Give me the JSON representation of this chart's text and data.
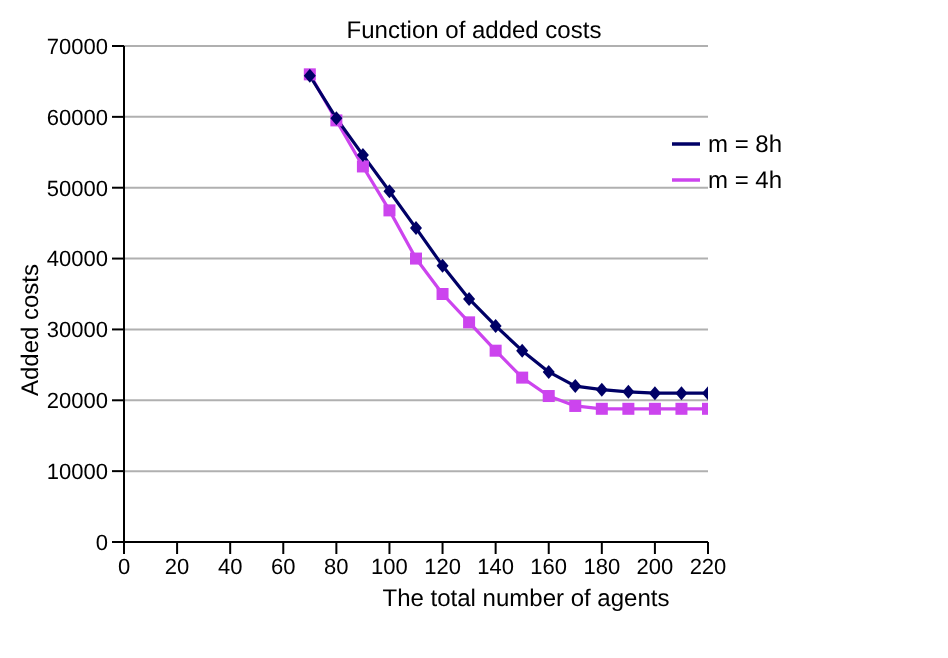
{
  "chart_data": {
    "type": "line",
    "title": "Function of added costs",
    "xlabel": "The total number of agents",
    "ylabel": "Added costs",
    "x": [
      70,
      80,
      90,
      100,
      110,
      120,
      130,
      140,
      150,
      160,
      170,
      180,
      190,
      200,
      210,
      220
    ],
    "series": [
      {
        "name": "m = 8h",
        "color": "#000066",
        "marker": "diamond",
        "values": [
          65800,
          59800,
          54600,
          49500,
          44300,
          39000,
          34300,
          30500,
          27000,
          24000,
          22000,
          21500,
          21200,
          21000,
          21000,
          21000
        ]
      },
      {
        "name": "m = 4h",
        "color": "#cc44ee",
        "marker": "square",
        "values": [
          66000,
          59500,
          53000,
          46800,
          40000,
          35000,
          31000,
          27000,
          23200,
          20600,
          19200,
          18800,
          18800,
          18800,
          18800,
          18800
        ]
      }
    ],
    "xlim": [
      0,
      220
    ],
    "xticks": [
      0,
      20,
      40,
      60,
      80,
      100,
      120,
      140,
      160,
      180,
      200,
      220
    ],
    "ylim": [
      0,
      70000
    ],
    "yticks": [
      0,
      10000,
      20000,
      30000,
      40000,
      50000,
      60000,
      70000
    ],
    "grid": "y",
    "legend": "top right"
  }
}
